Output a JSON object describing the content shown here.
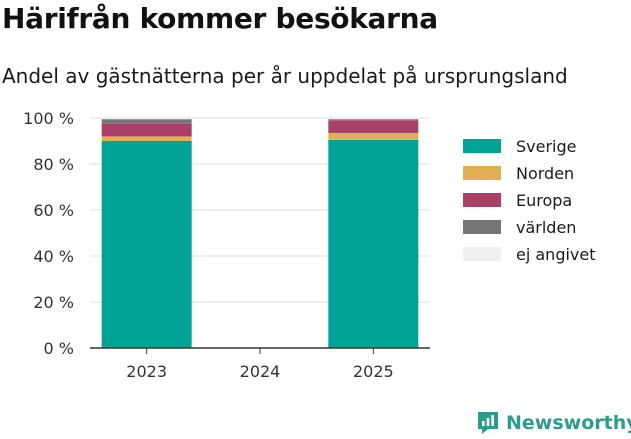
{
  "header": {
    "title": "Härifrån kommer besökarna",
    "subtitle": "Andel av gästnätterna per år uppdelat på ursprungsland"
  },
  "brand": {
    "name": "Newsworthy",
    "color": "#2e9c8a"
  },
  "chart_data": {
    "type": "bar",
    "stacked": true,
    "categories": [
      "2023",
      "2024",
      "2025"
    ],
    "series": [
      {
        "name": "Sverige",
        "color": "#00a398",
        "values": [
          90,
          null,
          90.5
        ]
      },
      {
        "name": "Norden",
        "color": "#e2b054",
        "values": [
          2,
          null,
          3
        ]
      },
      {
        "name": "Europa",
        "color": "#a84068",
        "values": [
          5.5,
          null,
          5.5
        ]
      },
      {
        "name": "världen",
        "color": "#767676",
        "values": [
          2,
          null,
          0.5
        ]
      },
      {
        "name": "ej angivet",
        "color": "#f0f0f0",
        "values": [
          0.5,
          null,
          0.5
        ]
      }
    ],
    "ylim": [
      0,
      100
    ],
    "yticks": [
      0,
      20,
      40,
      60,
      80,
      100
    ],
    "ytick_labels": [
      "0 %",
      "20 %",
      "40 %",
      "60 %",
      "80 %",
      "100 %"
    ],
    "grid": true,
    "legend_position": "right"
  }
}
